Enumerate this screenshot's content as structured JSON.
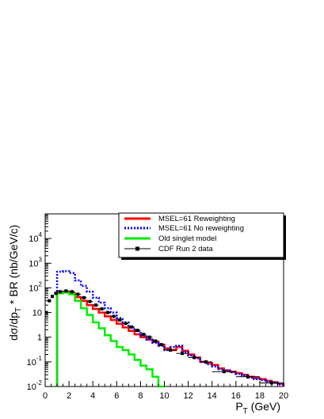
{
  "chart_data": {
    "type": "line",
    "xlabel": "P",
    "xlabel_sub": "T",
    "xlabel_unit": " (GeV)",
    "ylabel": "dσ/dp",
    "ylabel_sub": "T",
    "ylabel_rest": " * BR (nb/GeV/c)",
    "xlim": [
      0,
      20
    ],
    "ylim": [
      0.01,
      100000
    ],
    "yscale": "log",
    "grid": false,
    "legend_position": "top-right",
    "x_ticks": [
      "0",
      "2",
      "4",
      "6",
      "8",
      "10",
      "12",
      "14",
      "16",
      "18",
      "20"
    ],
    "y_ticks": [
      {
        "mant": "10",
        "exp": "-2",
        "value": 0.01
      },
      {
        "mant": "10",
        "exp": "-1",
        "value": 0.1
      },
      {
        "mant": "1",
        "exp": "",
        "value": 1
      },
      {
        "mant": "10",
        "exp": "",
        "value": 10
      },
      {
        "mant": "10",
        "exp": "2",
        "value": 100
      },
      {
        "mant": "10",
        "exp": "3",
        "value": 1000
      },
      {
        "mant": "10",
        "exp": "4",
        "value": 10000
      }
    ],
    "series": [
      {
        "name": "MSEL=61 Reweighting",
        "color": "#ff0000",
        "style": "solid",
        "kind": "step",
        "edges": [
          1,
          1.5,
          2,
          2.5,
          3,
          3.5,
          4,
          4.5,
          5,
          5.5,
          6,
          6.5,
          7,
          7.5,
          8,
          8.5,
          9,
          9.5,
          10,
          10.5,
          11,
          11.5,
          12,
          12.5,
          13,
          13.5,
          14,
          14.5,
          15,
          15.5,
          16,
          16.5,
          17,
          17.5,
          18,
          18.5,
          19,
          19.5,
          20
        ],
        "values": [
          65,
          70,
          60,
          42,
          30,
          20,
          14,
          10,
          7,
          5,
          3.5,
          2.5,
          1.8,
          1.3,
          1.0,
          0.8,
          0.65,
          0.5,
          0.35,
          0.3,
          0.4,
          0.28,
          0.2,
          0.15,
          0.1,
          0.09,
          0.075,
          0.055,
          0.045,
          0.04,
          0.035,
          0.03,
          0.025,
          0.022,
          0.02,
          0.017,
          0.015,
          0.013
        ]
      },
      {
        "name": "MSEL=61 No reweighting",
        "color": "#0000ff",
        "style": "dotted",
        "kind": "step",
        "edges": [
          1,
          1.5,
          2,
          2.5,
          3,
          3.5,
          4,
          4.5,
          5,
          5.5,
          6,
          6.5,
          7,
          7.5,
          8,
          8.5,
          9,
          9.5,
          10,
          10.5,
          11,
          11.5,
          12,
          12.5,
          13,
          13.5,
          14,
          14.5,
          15,
          15.5,
          16,
          16.5,
          17,
          17.5,
          18,
          18.5,
          19,
          19.5,
          20
        ],
        "values": [
          450,
          480,
          400,
          200,
          120,
          70,
          40,
          25,
          15,
          10,
          6,
          4,
          2.5,
          1.8,
          1.2,
          0.8,
          0.6,
          0.45,
          0.3,
          0.4,
          0.45,
          0.25,
          0.18,
          0.14,
          0.1,
          0.08,
          0.065,
          0.05,
          0.045,
          0.038,
          0.032,
          0.028,
          0.023,
          0.02,
          0.018,
          0.016,
          0.014,
          0.012
        ]
      },
      {
        "name": "Old singlet model",
        "color": "#00ee00",
        "style": "solid",
        "kind": "step",
        "edges": [
          1,
          1.5,
          2,
          2.5,
          3,
          3.5,
          4,
          4.5,
          5,
          5.5,
          6,
          6.5,
          7,
          7.5,
          8,
          8.5,
          9,
          9.5,
          10
        ],
        "values": [
          60,
          65,
          55,
          30,
          15,
          8,
          4,
          2.3,
          1.2,
          0.7,
          0.4,
          0.3,
          0.2,
          0.12,
          0.07,
          0.05,
          0.025,
          0.01
        ]
      },
      {
        "name": "CDF Run 2 data",
        "color": "#000000",
        "style": "markers",
        "kind": "points",
        "x": [
          0.1,
          0.35,
          0.6,
          0.9,
          1.25,
          1.75,
          2.25,
          2.75,
          3.25,
          3.75,
          4.25,
          4.75,
          5.25,
          5.75,
          6.25,
          6.75,
          7.25,
          7.75,
          8.25,
          8.75,
          9.25,
          9.75,
          10.5,
          11.5,
          12.5,
          13.5,
          15,
          17,
          19
        ],
        "x_err": [
          0.1,
          0.15,
          0.1,
          0.15,
          0.25,
          0.25,
          0.25,
          0.25,
          0.25,
          0.25,
          0.25,
          0.25,
          0.25,
          0.25,
          0.25,
          0.25,
          0.25,
          0.25,
          0.25,
          0.25,
          0.25,
          0.25,
          0.5,
          0.5,
          0.5,
          0.5,
          1,
          1,
          1
        ],
        "y": [
          10,
          30,
          45,
          60,
          70,
          75,
          70,
          55,
          40,
          28,
          20,
          14,
          10,
          7,
          5,
          3.6,
          2.6,
          1.9,
          1.3,
          1,
          0.7,
          0.5,
          0.3,
          0.22,
          0.15,
          0.1,
          0.04,
          0.025,
          0.014
        ]
      }
    ]
  }
}
